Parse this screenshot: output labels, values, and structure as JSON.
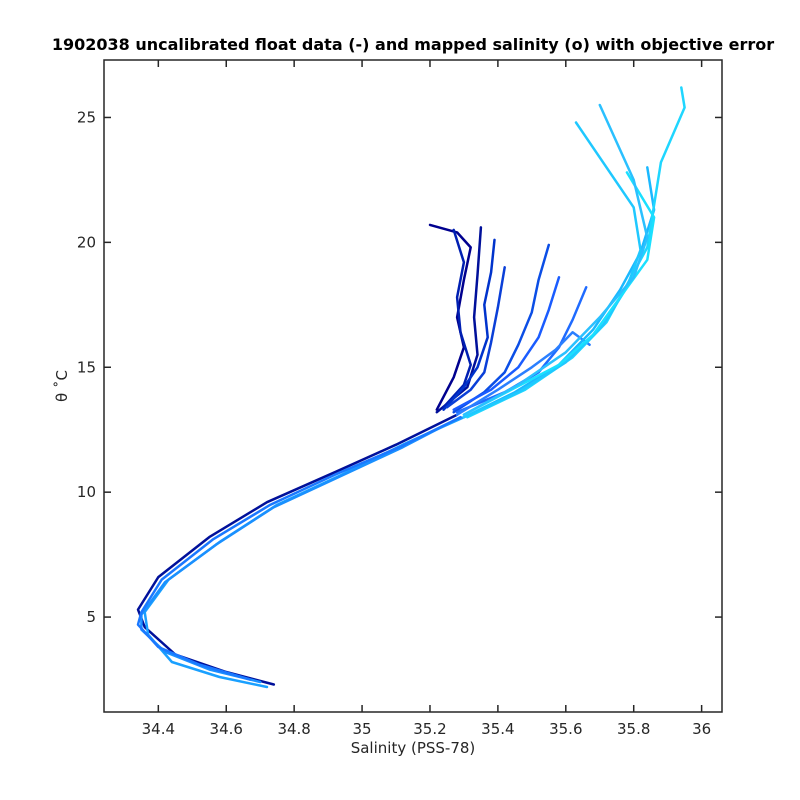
{
  "chart_data": {
    "type": "line",
    "title": "1902038 uncalibrated float data (-) and mapped salinity (o) with objective error",
    "xlabel": "Salinity (PSS-78)",
    "ylabel": "θ ˚C",
    "xlim": [
      34.24,
      36.06
    ],
    "ylim": [
      1.2,
      27.3
    ],
    "xticks": [
      "34.4",
      "34.6",
      "34.8",
      "35",
      "35.2",
      "35.4",
      "35.6",
      "35.8",
      "36"
    ],
    "yticks": [
      "5",
      "10",
      "15",
      "20",
      "25"
    ],
    "grid": false,
    "legend": "none",
    "colors": {
      "deep_blue": "#00008f",
      "mid_blue": "#1a5cff",
      "light_blue": "#1fd6ff"
    },
    "series": [
      {
        "color": "#00109a",
        "x": [
          34.74,
          34.6,
          34.45,
          34.36,
          34.34,
          34.4,
          34.55,
          34.72,
          34.92,
          35.1,
          35.28
        ],
        "y": [
          2.3,
          2.8,
          3.5,
          4.6,
          5.3,
          6.6,
          8.2,
          9.6,
          10.8,
          11.9,
          13.1
        ]
      },
      {
        "color": "#00109a",
        "x": [
          35.22,
          35.31,
          35.34,
          35.33,
          35.34,
          35.35
        ],
        "y": [
          13.2,
          14.2,
          15.5,
          17,
          18.7,
          20.6
        ]
      },
      {
        "color": "#00008f",
        "x": [
          35.22,
          35.27,
          35.3,
          35.28,
          35.3,
          35.32,
          35.28,
          35.2
        ],
        "y": [
          13.3,
          14.6,
          15.8,
          17,
          18.5,
          19.8,
          20.4,
          20.7
        ]
      },
      {
        "color": "#001fb2",
        "x": [
          35.24,
          35.3,
          35.32,
          35.29,
          35.28,
          35.3,
          35.27
        ],
        "y": [
          13.4,
          14.3,
          15.1,
          16.4,
          17.8,
          19.2,
          20.5
        ]
      },
      {
        "color": "#0033cc",
        "x": [
          35.24,
          35.3,
          35.34,
          35.37,
          35.36,
          35.38,
          35.39
        ],
        "y": [
          13.3,
          14.2,
          15,
          16.2,
          17.5,
          18.8,
          20.1
        ]
      },
      {
        "color": "#0a3fd8",
        "x": [
          35.25,
          35.32,
          35.36,
          35.38,
          35.4,
          35.42
        ],
        "y": [
          13.4,
          14.1,
          14.8,
          16,
          17.4,
          19
        ]
      },
      {
        "color": "#0b4ee6",
        "x": [
          35.27,
          35.36,
          35.42,
          35.46,
          35.5,
          35.52,
          35.55
        ],
        "y": [
          13.2,
          14,
          14.8,
          15.9,
          17.2,
          18.5,
          19.9
        ]
      },
      {
        "color": "#1a5cff",
        "x": [
          35.27,
          35.38,
          35.46,
          35.52,
          35.55,
          35.58
        ],
        "y": [
          13.3,
          14.1,
          15,
          16.2,
          17.3,
          18.6
        ]
      },
      {
        "color": "#1f6bff",
        "x": [
          35.28,
          35.42,
          35.52,
          35.58,
          35.62,
          35.66
        ],
        "y": [
          13.2,
          14,
          14.8,
          15.8,
          16.9,
          18.2
        ]
      },
      {
        "color": "#2a7fff",
        "x": [
          35.28,
          35.4,
          35.5,
          35.57,
          35.62,
          35.67
        ],
        "y": [
          13.1,
          14.1,
          15,
          15.7,
          16.4,
          15.9
        ]
      },
      {
        "color": "#1aa0ff",
        "x": [
          34.72,
          34.58,
          34.44,
          34.37,
          34.36,
          34.43,
          34.58,
          34.75,
          34.94,
          35.12,
          35.3
        ],
        "y": [
          2.2,
          2.6,
          3.2,
          4.3,
          5.2,
          6.5,
          8,
          9.5,
          10.7,
          11.9,
          13
        ]
      },
      {
        "color": "#1ab8ff",
        "x": [
          35.3,
          35.45,
          35.58,
          35.68,
          35.76,
          35.82,
          35.86,
          35.84
        ],
        "y": [
          13,
          14,
          15.1,
          16.5,
          18.1,
          19.6,
          21.3,
          23
        ]
      },
      {
        "color": "#1fd6ff",
        "x": [
          35.31,
          35.48,
          35.62,
          35.72,
          35.78,
          35.84,
          35.86,
          35.88,
          35.95,
          35.94
        ],
        "y": [
          13,
          14.1,
          15.4,
          16.8,
          18.3,
          19.8,
          21.5,
          23.2,
          25.4,
          26.2
        ]
      },
      {
        "color": "#1fc8ff",
        "x": [
          35.3,
          35.46,
          35.6,
          35.71,
          35.78,
          35.82,
          35.8,
          35.63
        ],
        "y": [
          13,
          14,
          15.2,
          16.7,
          18.2,
          19.7,
          21.4,
          24.8
        ]
      },
      {
        "color": "#1ae0ff",
        "x": [
          35.3,
          35.44,
          35.58,
          35.68,
          35.76,
          35.84,
          35.86,
          35.78
        ],
        "y": [
          13.1,
          14.1,
          15.1,
          16.3,
          17.8,
          19.3,
          21,
          22.8
        ]
      },
      {
        "color": "#2ac0ff",
        "x": [
          35.3,
          35.46,
          35.6,
          35.7,
          35.8,
          35.84,
          35.8,
          35.7
        ],
        "y": [
          13.1,
          14.3,
          15.6,
          17,
          18.6,
          20.2,
          22.5,
          25.5
        ]
      },
      {
        "color": "#1a90ff",
        "x": [
          34.7,
          34.55,
          34.42,
          34.35,
          34.35,
          34.42,
          34.57,
          34.74,
          34.93,
          35.12,
          35.29
        ],
        "y": [
          2.4,
          2.9,
          3.6,
          4.5,
          5.1,
          6.4,
          7.9,
          9.4,
          10.6,
          11.8,
          13
        ]
      },
      {
        "color": "#1a78ff",
        "x": [
          34.67,
          34.52,
          34.4,
          34.34,
          34.35,
          34.41,
          34.56,
          34.73,
          34.92,
          35.11,
          35.29
        ],
        "y": [
          2.5,
          3.1,
          3.8,
          4.7,
          5.2,
          6.5,
          8.1,
          9.5,
          10.7,
          11.8,
          13
        ]
      }
    ]
  }
}
